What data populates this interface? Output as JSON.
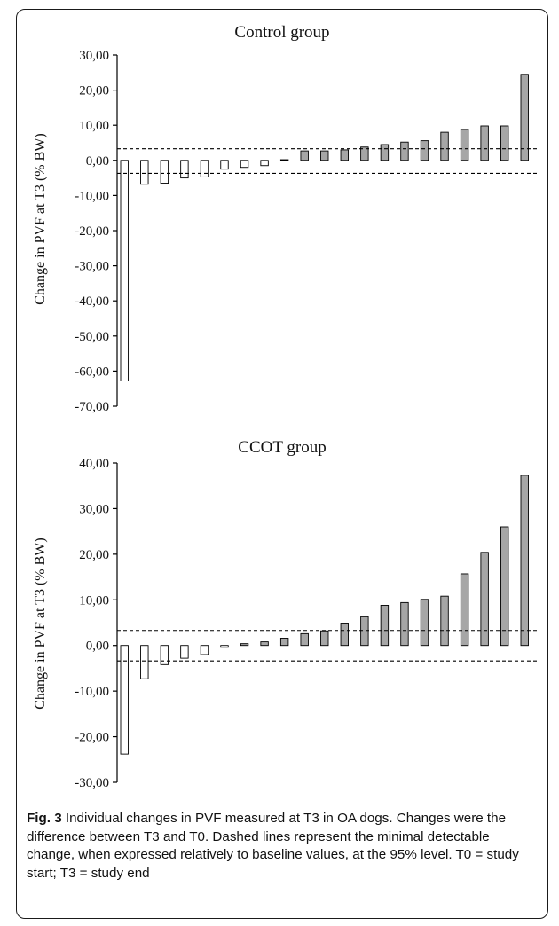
{
  "chart_data": [
    {
      "type": "bar",
      "title": "Control group",
      "ylabel": "Change in PVF at T3 (% BW)",
      "ylim": [
        -70,
        30
      ],
      "yticks": [
        30,
        20,
        10,
        0,
        -10,
        -20,
        -30,
        -40,
        -50,
        -60,
        -70
      ],
      "ytick_labels": [
        "30,00",
        "20,00",
        "10,00",
        "0,00",
        "-10,00",
        "-20,00",
        "-30,00",
        "-40,00",
        "-50,00",
        "-60,00",
        "-70,00"
      ],
      "threshold_lines": [
        3.3,
        -3.7
      ],
      "values": [
        -62.8,
        -6.8,
        -6.5,
        -5.0,
        -4.7,
        -2.5,
        -2.0,
        -1.5,
        0.2,
        2.7,
        2.7,
        3.0,
        3.8,
        4.5,
        5.2,
        5.6,
        8.0,
        8.8,
        9.8,
        9.8,
        24.5
      ],
      "colors": {
        "negative": "#ffffff",
        "positive": "#a6a6a6",
        "outline": "#000000"
      },
      "grid": false
    },
    {
      "type": "bar",
      "title": "CCOT group",
      "ylabel": "Change in PVF at T3 (% BW)",
      "ylim": [
        -30,
        40
      ],
      "yticks": [
        40,
        30,
        20,
        10,
        0,
        -10,
        -20,
        -30
      ],
      "ytick_labels": [
        "40,00",
        "30,00",
        "20,00",
        "10,00",
        "0,00",
        "-10,00",
        "-20,00",
        "-30,00"
      ],
      "threshold_lines": [
        3.3,
        -3.4
      ],
      "values": [
        -23.8,
        -7.3,
        -4.2,
        -2.8,
        -2.0,
        -0.4,
        0.4,
        0.8,
        1.6,
        2.6,
        3.2,
        4.9,
        6.3,
        8.8,
        9.4,
        10.1,
        10.8,
        15.7,
        20.4,
        26.0,
        37.3
      ],
      "colors": {
        "negative": "#ffffff",
        "positive": "#a6a6a6",
        "outline": "#000000"
      },
      "grid": false
    }
  ],
  "caption": {
    "label": "Fig. 3",
    "text": " Individual changes in PVF measured at T3 in OA dogs. Changes were the difference between T3 and T0. Dashed lines represent the minimal detectable change, when expressed relatively to baseline values, at the 95% level. T0 = study start; T3 = study end"
  }
}
